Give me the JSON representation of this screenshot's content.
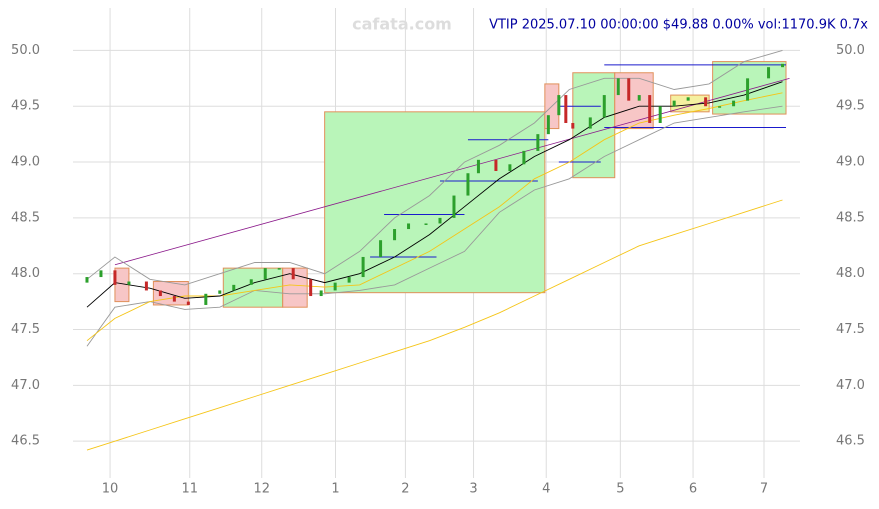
{
  "chart_data": {
    "type": "candlestick",
    "title": "VTIP 2025.07.10 00:00:00 $49.88 0.00% vol:1170.9K 0.7x",
    "watermark": "cafata.com",
    "xlim": [
      -2,
      206
    ],
    "ylim": [
      46.17,
      50.38
    ],
    "yticks": [
      {
        "value": 46.5,
        "label": "46.5"
      },
      {
        "value": 47,
        "label": "47.0"
      },
      {
        "value": 47.5,
        "label": "47.5"
      },
      {
        "value": 48,
        "label": "48.0"
      },
      {
        "value": 48.5,
        "label": "48.5"
      },
      {
        "value": 49,
        "label": "49.0"
      },
      {
        "value": 49.5,
        "label": "49.5"
      },
      {
        "value": 50,
        "label": "50.0"
      }
    ],
    "xticks": [
      {
        "value": 8.6,
        "label": "10"
      },
      {
        "value": 31.4,
        "label": "11"
      },
      {
        "value": 52,
        "label": "12"
      },
      {
        "value": 73.1,
        "label": "1"
      },
      {
        "value": 93.1,
        "label": "2"
      },
      {
        "value": 112.6,
        "label": "3"
      },
      {
        "value": 133.4,
        "label": "4"
      },
      {
        "value": 154.6,
        "label": "5"
      },
      {
        "value": 175.4,
        "label": "6"
      },
      {
        "value": 195.7,
        "label": "7"
      }
    ],
    "grid": true,
    "up_color": "#2ca02c",
    "down_color": "#c62828",
    "candles": {
      "x": [
        2,
        6,
        10,
        14,
        19,
        23,
        27,
        31,
        36,
        40,
        44,
        49,
        53,
        57,
        61,
        66,
        69,
        73,
        77,
        81,
        86,
        90,
        94,
        99,
        103,
        107,
        111,
        114,
        119,
        123,
        127,
        131,
        134,
        137,
        139,
        141,
        146,
        150,
        154,
        157,
        160,
        163,
        166,
        170,
        174,
        179,
        183,
        187,
        191,
        197,
        201
      ],
      "open": [
        47.92,
        47.97,
        48.03,
        47.9,
        47.93,
        47.85,
        47.8,
        47.75,
        47.72,
        47.82,
        47.85,
        47.9,
        47.95,
        48.05,
        48.05,
        47.95,
        47.8,
        47.85,
        47.92,
        47.97,
        48.15,
        48.3,
        48.4,
        48.45,
        48.45,
        48.5,
        48.7,
        48.9,
        49.02,
        48.92,
        48.98,
        49.1,
        49.25,
        49.42,
        49.6,
        49.35,
        49.3,
        49.4,
        49.6,
        49.75,
        49.55,
        49.6,
        49.35,
        49.5,
        49.55,
        49.58,
        49.5,
        49.5,
        49.55,
        49.75,
        49.85
      ],
      "close": [
        47.97,
        48.03,
        47.9,
        47.93,
        47.85,
        47.8,
        47.75,
        47.72,
        47.82,
        47.85,
        47.9,
        47.95,
        48.05,
        48.05,
        47.95,
        47.8,
        47.85,
        47.92,
        47.97,
        48.15,
        48.3,
        48.4,
        48.45,
        48.45,
        48.5,
        48.7,
        48.9,
        49.02,
        48.92,
        48.98,
        49.1,
        49.25,
        49.42,
        49.6,
        49.35,
        49.3,
        49.4,
        49.6,
        49.75,
        49.55,
        49.6,
        49.35,
        49.5,
        49.55,
        49.58,
        49.5,
        49.5,
        49.55,
        49.75,
        49.85,
        49.88
      ]
    },
    "line_x": [
      2,
      10,
      20,
      30,
      40,
      50,
      60,
      70,
      80,
      90,
      100,
      110,
      120,
      130,
      140,
      150,
      160,
      170,
      180,
      190,
      201
    ],
    "lines": [
      {
        "color": "#999999",
        "values": [
          47.95,
          48.15,
          47.95,
          47.9,
          48.0,
          48.1,
          48.1,
          48.0,
          48.2,
          48.5,
          48.7,
          49.0,
          49.15,
          49.35,
          49.65,
          49.75,
          49.75,
          49.65,
          49.7,
          49.9,
          50.0
        ]
      },
      {
        "color": "#999999",
        "values": [
          47.35,
          47.7,
          47.75,
          47.68,
          47.7,
          47.85,
          47.82,
          47.82,
          47.85,
          47.9,
          48.05,
          48.2,
          48.55,
          48.75,
          48.85,
          49.05,
          49.2,
          49.35,
          49.4,
          49.45,
          49.5
        ]
      },
      {
        "color": "#f5c518",
        "values": [
          47.4,
          47.6,
          47.75,
          47.8,
          47.8,
          47.85,
          47.9,
          47.88,
          47.9,
          48.05,
          48.2,
          48.4,
          48.6,
          48.85,
          49.0,
          49.2,
          49.35,
          49.42,
          49.48,
          49.55,
          49.62
        ]
      },
      {
        "color": "#f5c518",
        "values": [
          46.42,
          46.5,
          46.6,
          46.7,
          46.8,
          46.9,
          47.0,
          47.1,
          47.2,
          47.3,
          47.4,
          47.52,
          47.65,
          47.8,
          47.95,
          48.1,
          48.25,
          48.35,
          48.45,
          48.55,
          48.66
        ]
      },
      {
        "color": "#000000",
        "values": [
          47.7,
          47.92,
          47.87,
          47.78,
          47.8,
          47.92,
          48.0,
          47.92,
          48.0,
          48.15,
          48.35,
          48.6,
          48.85,
          49.05,
          49.2,
          49.4,
          49.5,
          49.5,
          49.53,
          49.6,
          49.72
        ]
      }
    ],
    "boxes": [
      {
        "x": [
          10,
          14
        ],
        "y": [
          47.75,
          48.05
        ],
        "color": "#f7c6c6"
      },
      {
        "x": [
          21,
          31
        ],
        "y": [
          47.72,
          47.93
        ],
        "color": "#f7c6c6"
      },
      {
        "x": [
          41,
          58
        ],
        "y": [
          47.7,
          48.05
        ],
        "color": "#b9f5b9"
      },
      {
        "x": [
          58,
          65
        ],
        "y": [
          47.7,
          48.05
        ],
        "color": "#f7c6c6"
      },
      {
        "x": [
          70,
          133
        ],
        "y": [
          47.83,
          49.45
        ],
        "color": "#b9f5b9"
      },
      {
        "x": [
          133,
          137
        ],
        "y": [
          49.3,
          49.7
        ],
        "color": "#f7c6c6"
      },
      {
        "x": [
          141,
          153
        ],
        "y": [
          48.86,
          49.8
        ],
        "color": "#b9f5b9"
      },
      {
        "x": [
          153,
          164
        ],
        "y": [
          49.3,
          49.8
        ],
        "color": "#f7c6c6"
      },
      {
        "x": [
          169,
          180
        ],
        "y": [
          49.45,
          49.6
        ],
        "color": "#f5f0a0"
      },
      {
        "x": [
          181,
          202
        ],
        "y": [
          49.43,
          49.9
        ],
        "color": "#b9f5b9"
      }
    ],
    "levels": [
      {
        "x": [
          83,
          102
        ],
        "y": 48.15
      },
      {
        "x": [
          87,
          110
        ],
        "y": 48.53
      },
      {
        "x": [
          103,
          131
        ],
        "y": 48.83
      },
      {
        "x": [
          111,
          134
        ],
        "y": 49.2
      },
      {
        "x": [
          137,
          149
        ],
        "y": 49.5
      },
      {
        "x": [
          137,
          149
        ],
        "y": 49.0
      },
      {
        "x": [
          150,
          202
        ],
        "y": 49.87
      },
      {
        "x": [
          150,
          202
        ],
        "y": 49.31
      }
    ],
    "trend": {
      "x": [
        10,
        203
      ],
      "y": [
        48.08,
        49.75
      ],
      "color": "#8b1a8b"
    }
  }
}
